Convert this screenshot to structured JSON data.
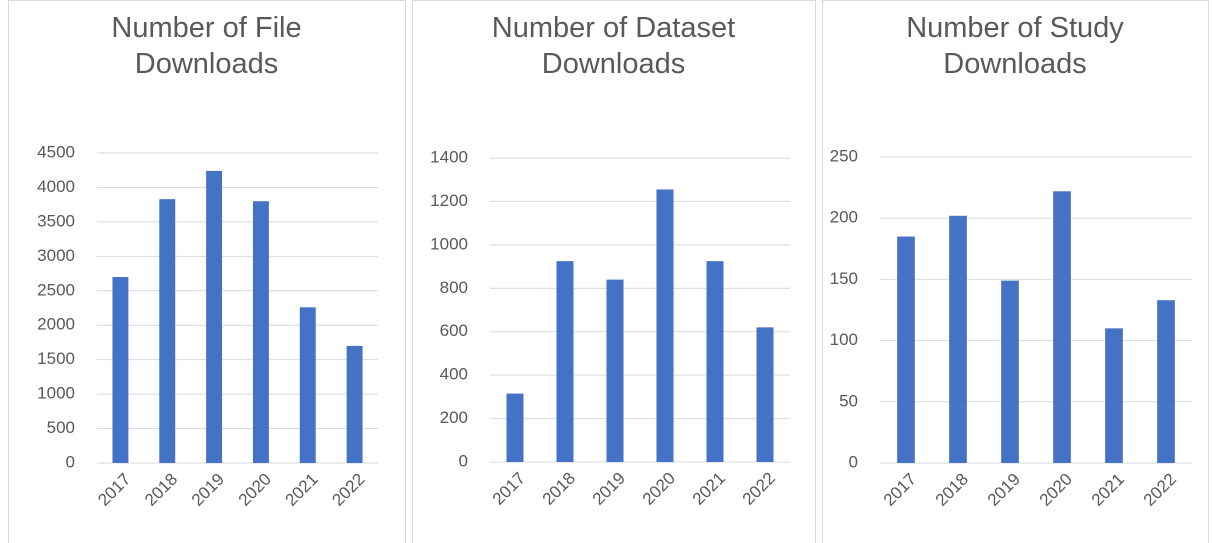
{
  "chart_data": [
    {
      "type": "bar",
      "title": "Number of File Downloads",
      "categories": [
        "2017",
        "2018",
        "2019",
        "2020",
        "2021",
        "2022"
      ],
      "values": [
        2700,
        3830,
        4240,
        3800,
        2260,
        1700
      ],
      "color": "#4472c4",
      "ylim": [
        0,
        4500
      ],
      "yticks": [
        0,
        500,
        1000,
        1500,
        2000,
        2500,
        3000,
        3500,
        4000,
        4500
      ],
      "grid": true
    },
    {
      "type": "bar",
      "title": "Number of Dataset Downloads",
      "categories": [
        "2017",
        "2018",
        "2019",
        "2020",
        "2021",
        "2022"
      ],
      "values": [
        315,
        925,
        840,
        1255,
        925,
        620
      ],
      "color": "#4472c4",
      "ylim": [
        0,
        1400
      ],
      "yticks": [
        0,
        200,
        400,
        600,
        800,
        1000,
        1200,
        1400
      ],
      "grid": true
    },
    {
      "type": "bar",
      "title": "Number of Study Downloads",
      "categories": [
        "2017",
        "2018",
        "2019",
        "2020",
        "2021",
        "2022"
      ],
      "values": [
        185,
        202,
        149,
        222,
        110,
        133
      ],
      "color": "#4472c4",
      "ylim": [
        0,
        250
      ],
      "yticks": [
        0,
        50,
        100,
        150,
        200,
        250
      ],
      "grid": true
    }
  ]
}
